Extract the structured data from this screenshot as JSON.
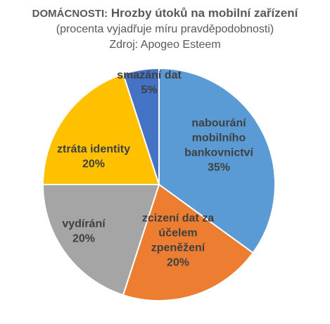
{
  "header": {
    "title_prefix": "DOMÁCNOSTI:",
    "title_main": "Hrozby útoků na mobilní zařízení",
    "subtitle": "(procenta vyjadřuje míru pravděpodobnosti)",
    "source": "Zdroj: Apogeo Esteem"
  },
  "chart_data": {
    "type": "pie",
    "title": "DOMÁCNOSTI: Hrozby útoků na mobilní zařízení",
    "subtitle": "(procenta vyjadřuje míru pravděpodobnosti)",
    "source": "Zdroj: Apogeo Esteem",
    "unit": "%",
    "slices": [
      {
        "label": "nabourání mobilního bankovnictví",
        "label_lines": [
          "nabourání",
          "mobilního",
          "bankovnictví"
        ],
        "value": 35,
        "value_label": "35%",
        "color": "#5B9BD5"
      },
      {
        "label": "zcizení dat za účelem zpeněžení",
        "label_lines": [
          "zcizení dat za",
          "účelem",
          "zpeněžení"
        ],
        "value": 20,
        "value_label": "20%",
        "color": "#ED7D31"
      },
      {
        "label": "vydírání",
        "label_lines": [
          "vydírání"
        ],
        "value": 20,
        "value_label": "20%",
        "color": "#A5A5A5"
      },
      {
        "label": "ztráta identity",
        "label_lines": [
          "ztráta identity"
        ],
        "value": 20,
        "value_label": "20%",
        "color": "#FFC000"
      },
      {
        "label": "smazání dat",
        "label_lines": [
          "smazání dat"
        ],
        "value": 5,
        "value_label": "5%",
        "color": "#4472C4"
      }
    ],
    "start": "12 o'clock",
    "direction": "clockwise",
    "legend": "none"
  }
}
